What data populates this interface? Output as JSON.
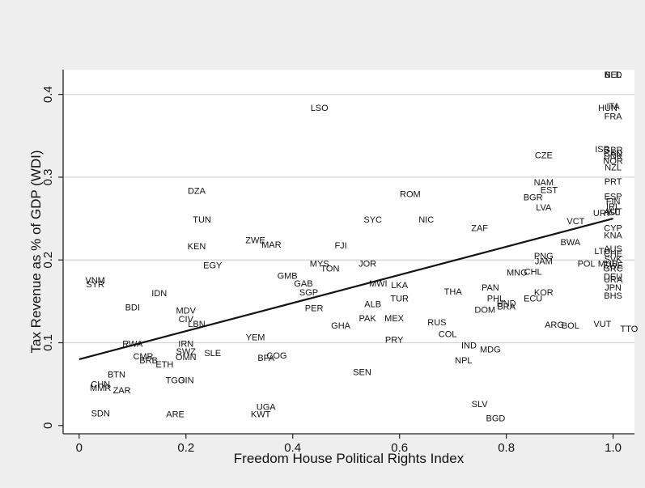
{
  "chart_data": {
    "type": "scatter",
    "title": "",
    "xlabel": "Freedom House Political Rights Index",
    "ylabel": "Tax Revenue as % of GDP (WDI)",
    "xlim": [
      -0.03,
      1.04
    ],
    "ylim": [
      -0.01,
      0.43
    ],
    "x_ticks": [
      0,
      0.2,
      0.4,
      0.6,
      0.8,
      1.0
    ],
    "x_tick_labels": [
      "0",
      "0.2",
      "0.4",
      "0.6",
      "0.8",
      "1.0"
    ],
    "y_ticks": [
      0,
      0.1,
      0.2,
      0.3,
      0.4
    ],
    "y_tick_labels": [
      "0",
      "0.1",
      "0.2",
      "0.3",
      "0.4"
    ],
    "grid": "horizontal",
    "fit_line": {
      "x": [
        0,
        1.0
      ],
      "y": [
        0.08,
        0.25
      ]
    },
    "points": [
      {
        "label": "NLD",
        "x": 1.0,
        "y": 0.423
      },
      {
        "label": "BEL",
        "x": 1.0,
        "y": 0.423
      },
      {
        "label": "LSO",
        "x": 0.45,
        "y": 0.383
      },
      {
        "label": "HUN",
        "x": 0.99,
        "y": 0.383
      },
      {
        "label": "ITA",
        "x": 1.0,
        "y": 0.385
      },
      {
        "label": "FRA",
        "x": 1.0,
        "y": 0.373
      },
      {
        "label": "ISR",
        "x": 0.98,
        "y": 0.333
      },
      {
        "label": "GBR",
        "x": 1.0,
        "y": 0.332
      },
      {
        "label": "CAN",
        "x": 1.0,
        "y": 0.328
      },
      {
        "label": "DNK",
        "x": 1.0,
        "y": 0.325
      },
      {
        "label": "NOR",
        "x": 1.0,
        "y": 0.319
      },
      {
        "label": "NZL",
        "x": 1.0,
        "y": 0.311
      },
      {
        "label": "CZE",
        "x": 0.87,
        "y": 0.326
      },
      {
        "label": "PRT",
        "x": 1.0,
        "y": 0.294
      },
      {
        "label": "NAM",
        "x": 0.87,
        "y": 0.293
      },
      {
        "label": "EST",
        "x": 0.88,
        "y": 0.284
      },
      {
        "label": "DZA",
        "x": 0.22,
        "y": 0.283
      },
      {
        "label": "ROM",
        "x": 0.62,
        "y": 0.279
      },
      {
        "label": "BGR",
        "x": 0.85,
        "y": 0.275
      },
      {
        "label": "ESP",
        "x": 1.0,
        "y": 0.276
      },
      {
        "label": "FIN",
        "x": 1.0,
        "y": 0.27
      },
      {
        "label": "IRL",
        "x": 1.0,
        "y": 0.264
      },
      {
        "label": "AUT",
        "x": 1.0,
        "y": 0.258
      },
      {
        "label": "LVA",
        "x": 0.87,
        "y": 0.263
      },
      {
        "label": "ISL",
        "x": 1.0,
        "y": 0.257
      },
      {
        "label": "URY",
        "x": 0.98,
        "y": 0.256
      },
      {
        "label": "TUN",
        "x": 0.23,
        "y": 0.248
      },
      {
        "label": "SYC",
        "x": 0.55,
        "y": 0.248
      },
      {
        "label": "NIC",
        "x": 0.65,
        "y": 0.248
      },
      {
        "label": "VCT",
        "x": 0.93,
        "y": 0.246
      },
      {
        "label": "CYP",
        "x": 1.0,
        "y": 0.238
      },
      {
        "label": "ZAF",
        "x": 0.75,
        "y": 0.238
      },
      {
        "label": "KNA",
        "x": 1.0,
        "y": 0.229
      },
      {
        "label": "ZWE",
        "x": 0.33,
        "y": 0.223
      },
      {
        "label": "MAR",
        "x": 0.36,
        "y": 0.218
      },
      {
        "label": "BWA",
        "x": 0.92,
        "y": 0.221
      },
      {
        "label": "KEN",
        "x": 0.22,
        "y": 0.216
      },
      {
        "label": "FJI",
        "x": 0.49,
        "y": 0.217
      },
      {
        "label": "AUS",
        "x": 1.0,
        "y": 0.213
      },
      {
        "label": "LTU",
        "x": 0.98,
        "y": 0.21
      },
      {
        "label": "CHE",
        "x": 1.0,
        "y": 0.207
      },
      {
        "label": "PNG",
        "x": 0.87,
        "y": 0.204
      },
      {
        "label": "JAM",
        "x": 0.87,
        "y": 0.198
      },
      {
        "label": "SVK",
        "x": 1.0,
        "y": 0.2
      },
      {
        "label": "MUS",
        "x": 0.99,
        "y": 0.195
      },
      {
        "label": "POL",
        "x": 0.95,
        "y": 0.195
      },
      {
        "label": "EGY",
        "x": 0.25,
        "y": 0.193
      },
      {
        "label": "MYS",
        "x": 0.45,
        "y": 0.195
      },
      {
        "label": "JOR",
        "x": 0.54,
        "y": 0.195
      },
      {
        "label": "TON",
        "x": 0.47,
        "y": 0.189
      },
      {
        "label": "SWE",
        "x": 1.0,
        "y": 0.193
      },
      {
        "label": "GRC",
        "x": 1.0,
        "y": 0.189
      },
      {
        "label": "MNG",
        "x": 0.82,
        "y": 0.184
      },
      {
        "label": "CHL",
        "x": 0.85,
        "y": 0.185
      },
      {
        "label": "DEU",
        "x": 1.0,
        "y": 0.179
      },
      {
        "label": "URA",
        "x": 1.0,
        "y": 0.176
      },
      {
        "label": "GMB",
        "x": 0.39,
        "y": 0.18
      },
      {
        "label": "VNM",
        "x": 0.03,
        "y": 0.175
      },
      {
        "label": "SYR",
        "x": 0.03,
        "y": 0.17
      },
      {
        "label": "GAB",
        "x": 0.42,
        "y": 0.171
      },
      {
        "label": "MWI",
        "x": 0.56,
        "y": 0.171
      },
      {
        "label": "LKA",
        "x": 0.6,
        "y": 0.169
      },
      {
        "label": "PAN",
        "x": 0.77,
        "y": 0.166
      },
      {
        "label": "JPN",
        "x": 1.0,
        "y": 0.166
      },
      {
        "label": "IDN",
        "x": 0.15,
        "y": 0.159
      },
      {
        "label": "SGP",
        "x": 0.43,
        "y": 0.16
      },
      {
        "label": "THA",
        "x": 0.7,
        "y": 0.161
      },
      {
        "label": "KOR",
        "x": 0.87,
        "y": 0.16
      },
      {
        "label": "BHS",
        "x": 1.0,
        "y": 0.156
      },
      {
        "label": "TUR",
        "x": 0.6,
        "y": 0.153
      },
      {
        "label": "PHL",
        "x": 0.78,
        "y": 0.153
      },
      {
        "label": "ECU",
        "x": 0.85,
        "y": 0.153
      },
      {
        "label": "HND",
        "x": 0.8,
        "y": 0.147
      },
      {
        "label": "BRA",
        "x": 0.8,
        "y": 0.143
      },
      {
        "label": "BDI",
        "x": 0.1,
        "y": 0.142
      },
      {
        "label": "PER",
        "x": 0.44,
        "y": 0.141
      },
      {
        "label": "DOM",
        "x": 0.76,
        "y": 0.139
      },
      {
        "label": "MDV",
        "x": 0.2,
        "y": 0.138
      },
      {
        "label": "ALB",
        "x": 0.55,
        "y": 0.146
      },
      {
        "label": "CIV",
        "x": 0.2,
        "y": 0.128
      },
      {
        "label": "PAK",
        "x": 0.54,
        "y": 0.129
      },
      {
        "label": "MEX",
        "x": 0.59,
        "y": 0.129
      },
      {
        "label": "LBN",
        "x": 0.22,
        "y": 0.122
      },
      {
        "label": "GHA",
        "x": 0.49,
        "y": 0.12
      },
      {
        "label": "RUS",
        "x": 0.67,
        "y": 0.124
      },
      {
        "label": "ARG",
        "x": 0.89,
        "y": 0.121
      },
      {
        "label": "BOL",
        "x": 0.92,
        "y": 0.12
      },
      {
        "label": "VUT",
        "x": 0.98,
        "y": 0.122
      },
      {
        "label": "TTO",
        "x": 1.03,
        "y": 0.116
      },
      {
        "label": "COL",
        "x": 0.69,
        "y": 0.11
      },
      {
        "label": "YEM",
        "x": 0.33,
        "y": 0.106
      },
      {
        "label": "PRY",
        "x": 0.59,
        "y": 0.103
      },
      {
        "label": "RWA",
        "x": 0.1,
        "y": 0.098
      },
      {
        "label": "IRN",
        "x": 0.2,
        "y": 0.098
      },
      {
        "label": "IND",
        "x": 0.73,
        "y": 0.096
      },
      {
        "label": "SWZ",
        "x": 0.2,
        "y": 0.089
      },
      {
        "label": "SLE",
        "x": 0.25,
        "y": 0.087
      },
      {
        "label": "MDG",
        "x": 0.77,
        "y": 0.091
      },
      {
        "label": "CMR",
        "x": 0.12,
        "y": 0.083
      },
      {
        "label": "OMN",
        "x": 0.2,
        "y": 0.082
      },
      {
        "label": "BFA",
        "x": 0.35,
        "y": 0.081
      },
      {
        "label": "COG",
        "x": 0.37,
        "y": 0.084
      },
      {
        "label": "NPL",
        "x": 0.72,
        "y": 0.078
      },
      {
        "label": "BRB",
        "x": 0.13,
        "y": 0.078
      },
      {
        "label": "ETH",
        "x": 0.16,
        "y": 0.073
      },
      {
        "label": "SEN",
        "x": 0.53,
        "y": 0.064
      },
      {
        "label": "BTN",
        "x": 0.07,
        "y": 0.061
      },
      {
        "label": "TGO",
        "x": 0.18,
        "y": 0.054
      },
      {
        "label": "GIN",
        "x": 0.2,
        "y": 0.054
      },
      {
        "label": "CHN",
        "x": 0.04,
        "y": 0.049
      },
      {
        "label": "MMR",
        "x": 0.04,
        "y": 0.045
      },
      {
        "label": "ZAR",
        "x": 0.08,
        "y": 0.042
      },
      {
        "label": "SLV",
        "x": 0.75,
        "y": 0.025
      },
      {
        "label": "UGA",
        "x": 0.35,
        "y": 0.022
      },
      {
        "label": "SDN",
        "x": 0.04,
        "y": 0.014
      },
      {
        "label": "ARE",
        "x": 0.18,
        "y": 0.013
      },
      {
        "label": "KWT",
        "x": 0.34,
        "y": 0.013
      },
      {
        "label": "BGD",
        "x": 0.78,
        "y": 0.008
      }
    ]
  }
}
